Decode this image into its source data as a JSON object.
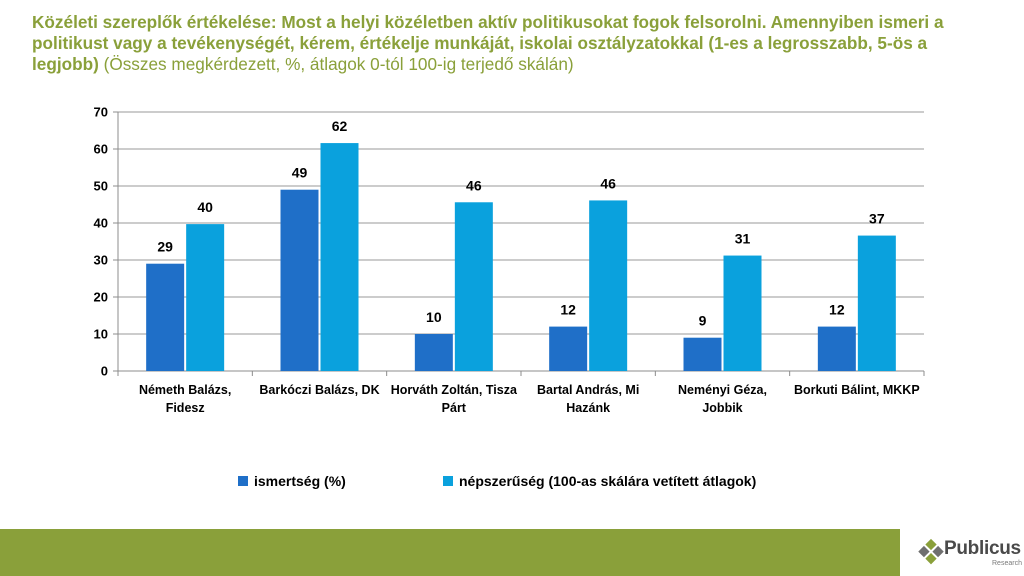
{
  "title": {
    "bold": "Közéleti szereplők értékelése: Most a helyi közéletben aktív politikusokat fogok felsorolni. Amennyiben ismeri a politikust vagy a tevékenységét, kérem, értékelje munkáját, iskolai osztályzatokkal  (1-es a legrosszabb, 5-ös a legjobb)",
    "normal": " (Összes megkérdezett, %, átlagok 0-tól 100-ig terjedő skálán)"
  },
  "chart_data": {
    "type": "bar",
    "categories": [
      [
        "Németh Balázs,",
        "Fidesz"
      ],
      [
        "Barkóczi Balázs, DK"
      ],
      [
        "Horváth Zoltán, Tisza",
        "Párt"
      ],
      [
        "Bartal András, Mi",
        "Hazánk"
      ],
      [
        "Neményi Géza,",
        "Jobbik"
      ],
      [
        "Borkuti Bálint, MKKP"
      ]
    ],
    "series": [
      {
        "name": "ismertség (%)",
        "color": "#1f6fc8",
        "values": [
          29,
          49,
          10,
          12,
          9,
          12
        ]
      },
      {
        "name": "népszerűség (100-as skálára vetített átlagok)",
        "color": "#0aa1dd",
        "values": [
          39.7,
          61.6,
          45.6,
          46.1,
          31.2,
          36.6
        ]
      }
    ],
    "data_labels": [
      [
        "29",
        "49",
        "10",
        "12",
        "9",
        "12"
      ],
      [
        "40",
        "62",
        "46",
        "46",
        "31",
        "37"
      ]
    ],
    "ylim": [
      0,
      70
    ],
    "yticks": [
      0,
      10,
      20,
      30,
      40,
      50,
      60,
      70
    ],
    "grid": true,
    "legend_position": "bottom"
  },
  "brand": {
    "name": "Publicus",
    "sub": "Research",
    "footer_color": "#8aa03a"
  }
}
